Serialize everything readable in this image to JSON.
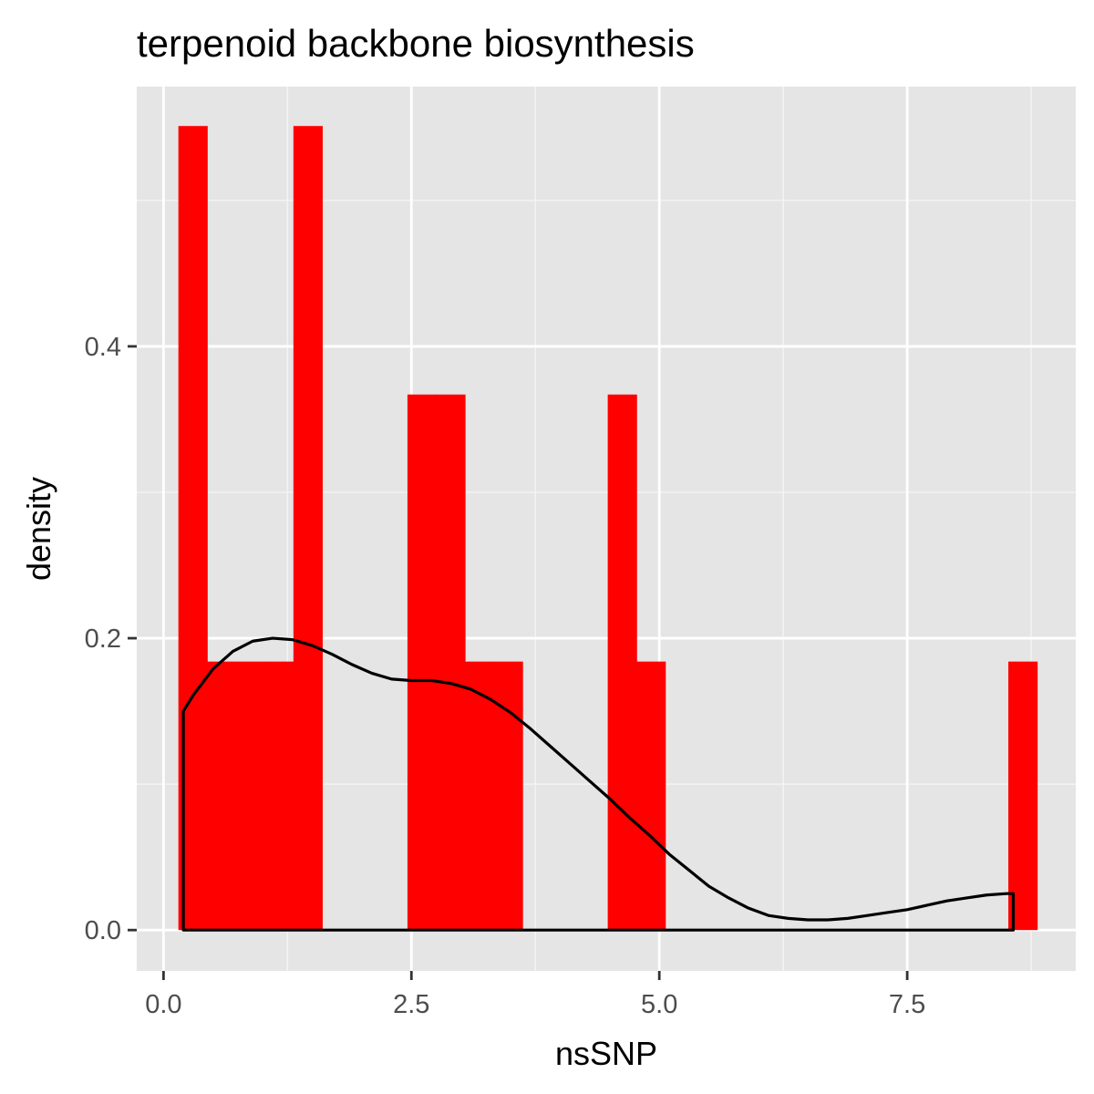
{
  "chart_data": {
    "type": "histogram",
    "title": "terpenoid backbone biosynthesis",
    "xlabel": "nsSNP",
    "ylabel": "density",
    "xlim": [
      -0.27,
      9.2
    ],
    "ylim": [
      -0.028,
      0.578
    ],
    "x_ticks": [
      0.0,
      2.5,
      5.0,
      7.5
    ],
    "x_tick_labels": [
      "0.0",
      "2.5",
      "5.0",
      "7.5"
    ],
    "y_ticks": [
      0.0,
      0.2,
      0.4
    ],
    "y_tick_labels": [
      "0.0",
      "0.2",
      "0.4"
    ],
    "x_minor_grid": [
      1.25,
      3.75,
      6.25,
      8.75
    ],
    "y_minor_grid": [
      0.1,
      0.3,
      0.5
    ],
    "grid": true,
    "bar_color": "#ff0000",
    "bins": [
      {
        "x0": 0.15,
        "x1": 0.44,
        "density": 0.551
      },
      {
        "x0": 0.44,
        "x1": 0.73,
        "density": 0.184
      },
      {
        "x0": 0.73,
        "x1": 1.02,
        "density": 0.184
      },
      {
        "x0": 1.02,
        "x1": 1.31,
        "density": 0.184
      },
      {
        "x0": 1.31,
        "x1": 1.6,
        "density": 0.551
      },
      {
        "x0": 2.46,
        "x1": 2.75,
        "density": 0.367
      },
      {
        "x0": 2.75,
        "x1": 3.04,
        "density": 0.367
      },
      {
        "x0": 3.04,
        "x1": 3.33,
        "density": 0.184
      },
      {
        "x0": 3.33,
        "x1": 3.62,
        "density": 0.184
      },
      {
        "x0": 4.48,
        "x1": 4.77,
        "density": 0.367
      },
      {
        "x0": 4.77,
        "x1": 5.06,
        "density": 0.184
      },
      {
        "x0": 8.52,
        "x1": 8.81,
        "density": 0.184
      }
    ],
    "density_curve": {
      "color": "#000000",
      "x": [
        0.2,
        0.3,
        0.5,
        0.7,
        0.9,
        1.1,
        1.3,
        1.5,
        1.7,
        1.9,
        2.1,
        2.3,
        2.5,
        2.7,
        2.9,
        3.1,
        3.3,
        3.5,
        3.7,
        3.9,
        4.1,
        4.3,
        4.5,
        4.7,
        4.9,
        5.1,
        5.3,
        5.5,
        5.7,
        5.9,
        6.1,
        6.3,
        6.5,
        6.7,
        6.9,
        7.1,
        7.3,
        7.5,
        7.7,
        7.9,
        8.1,
        8.3,
        8.5,
        8.57
      ],
      "y": [
        0.15,
        0.161,
        0.179,
        0.191,
        0.198,
        0.2,
        0.199,
        0.195,
        0.189,
        0.182,
        0.176,
        0.172,
        0.171,
        0.171,
        0.169,
        0.165,
        0.158,
        0.149,
        0.138,
        0.126,
        0.114,
        0.102,
        0.09,
        0.077,
        0.065,
        0.052,
        0.041,
        0.03,
        0.022,
        0.015,
        0.01,
        0.008,
        0.007,
        0.007,
        0.008,
        0.01,
        0.012,
        0.014,
        0.017,
        0.02,
        0.022,
        0.024,
        0.025,
        0.025
      ]
    }
  }
}
